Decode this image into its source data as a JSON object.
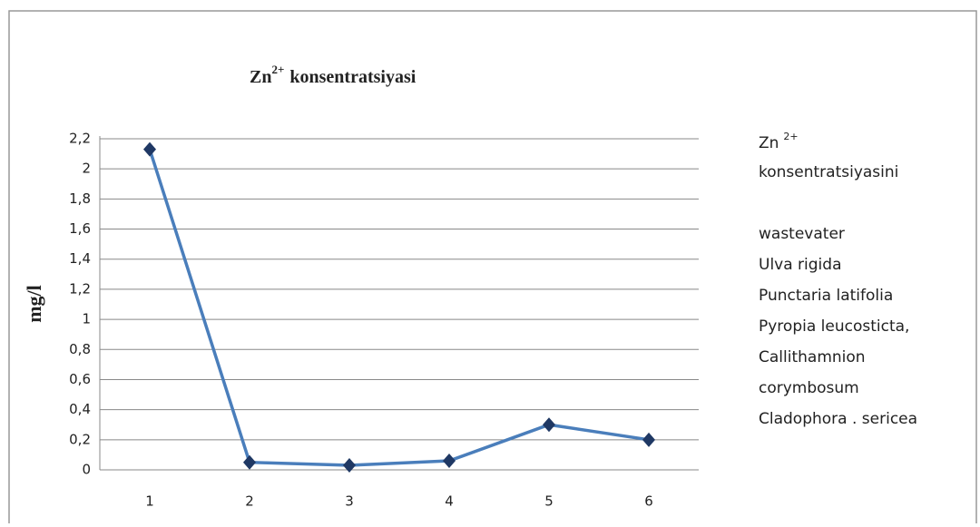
{
  "chart_data": {
    "type": "line",
    "title_parts": [
      "Zn",
      "2+",
      "konsentratsiyasi"
    ],
    "y_label": "mg/l",
    "categories": [
      "1",
      "2",
      "3",
      "4",
      "5",
      "6"
    ],
    "series": [
      {
        "color": "#4a7ebb",
        "values": [
          2.13,
          0.05,
          0.03,
          0.06,
          0.3,
          0.2
        ]
      }
    ],
    "ylim": [
      0,
      2.2
    ],
    "yticks": [
      0,
      {
        "value": 0.2,
        "label": "0,2"
      },
      {
        "value": 0.4,
        "label": "0,4"
      },
      {
        "value": 0.6,
        "label": "0,6"
      },
      {
        "value": 0.8,
        "label": "0,8"
      },
      1,
      {
        "value": 1.2,
        "label": "1,2"
      },
      {
        "value": 1.4,
        "label": "1,4"
      },
      {
        "value": 1.6,
        "label": "1,6"
      },
      {
        "value": 1.8,
        "label": "1,8"
      },
      2,
      {
        "value": 2.2,
        "label": "2,2"
      }
    ],
    "grid": true,
    "notes_head": [
      "Zn",
      "2+"
    ],
    "notes": [
      "konsentratsiyasini",
      "wastevater",
      "Ulva rigida",
      "Punctaria latifolia",
      "Pyropia leucosticta,",
      "Callithamnion",
      "corymbosum",
      "Cladophora . sericea"
    ]
  }
}
